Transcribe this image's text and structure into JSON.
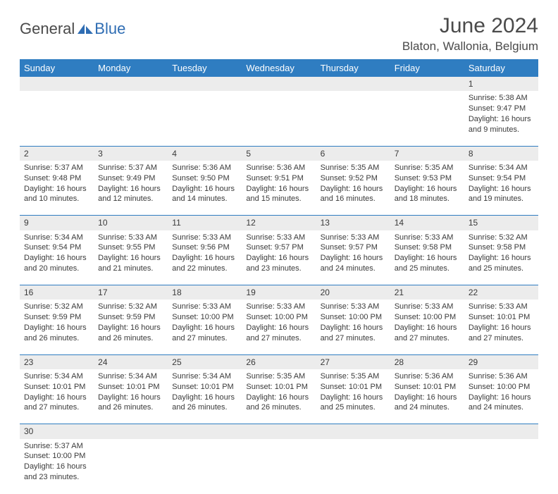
{
  "brand": {
    "part1": "General",
    "part2": "Blue"
  },
  "title": "June 2024",
  "location": "Blaton, Wallonia, Belgium",
  "colors": {
    "header_bg": "#2f7dc1",
    "header_fg": "#ffffff",
    "daynum_bg": "#ececec",
    "border": "#2f7dc1",
    "text": "#3a3a3a",
    "brand_blue": "#2f6db3",
    "brand_gray": "#4a4a4a"
  },
  "weekdays": [
    "Sunday",
    "Monday",
    "Tuesday",
    "Wednesday",
    "Thursday",
    "Friday",
    "Saturday"
  ],
  "weeks": [
    {
      "nums": [
        "",
        "",
        "",
        "",
        "",
        "",
        "1"
      ],
      "cells": [
        "",
        "",
        "",
        "",
        "",
        "",
        "Sunrise: 5:38 AM\nSunset: 9:47 PM\nDaylight: 16 hours and 9 minutes."
      ]
    },
    {
      "nums": [
        "2",
        "3",
        "4",
        "5",
        "6",
        "7",
        "8"
      ],
      "cells": [
        "Sunrise: 5:37 AM\nSunset: 9:48 PM\nDaylight: 16 hours and 10 minutes.",
        "Sunrise: 5:37 AM\nSunset: 9:49 PM\nDaylight: 16 hours and 12 minutes.",
        "Sunrise: 5:36 AM\nSunset: 9:50 PM\nDaylight: 16 hours and 14 minutes.",
        "Sunrise: 5:36 AM\nSunset: 9:51 PM\nDaylight: 16 hours and 15 minutes.",
        "Sunrise: 5:35 AM\nSunset: 9:52 PM\nDaylight: 16 hours and 16 minutes.",
        "Sunrise: 5:35 AM\nSunset: 9:53 PM\nDaylight: 16 hours and 18 minutes.",
        "Sunrise: 5:34 AM\nSunset: 9:54 PM\nDaylight: 16 hours and 19 minutes."
      ]
    },
    {
      "nums": [
        "9",
        "10",
        "11",
        "12",
        "13",
        "14",
        "15"
      ],
      "cells": [
        "Sunrise: 5:34 AM\nSunset: 9:54 PM\nDaylight: 16 hours and 20 minutes.",
        "Sunrise: 5:33 AM\nSunset: 9:55 PM\nDaylight: 16 hours and 21 minutes.",
        "Sunrise: 5:33 AM\nSunset: 9:56 PM\nDaylight: 16 hours and 22 minutes.",
        "Sunrise: 5:33 AM\nSunset: 9:57 PM\nDaylight: 16 hours and 23 minutes.",
        "Sunrise: 5:33 AM\nSunset: 9:57 PM\nDaylight: 16 hours and 24 minutes.",
        "Sunrise: 5:33 AM\nSunset: 9:58 PM\nDaylight: 16 hours and 25 minutes.",
        "Sunrise: 5:32 AM\nSunset: 9:58 PM\nDaylight: 16 hours and 25 minutes."
      ]
    },
    {
      "nums": [
        "16",
        "17",
        "18",
        "19",
        "20",
        "21",
        "22"
      ],
      "cells": [
        "Sunrise: 5:32 AM\nSunset: 9:59 PM\nDaylight: 16 hours and 26 minutes.",
        "Sunrise: 5:32 AM\nSunset: 9:59 PM\nDaylight: 16 hours and 26 minutes.",
        "Sunrise: 5:33 AM\nSunset: 10:00 PM\nDaylight: 16 hours and 27 minutes.",
        "Sunrise: 5:33 AM\nSunset: 10:00 PM\nDaylight: 16 hours and 27 minutes.",
        "Sunrise: 5:33 AM\nSunset: 10:00 PM\nDaylight: 16 hours and 27 minutes.",
        "Sunrise: 5:33 AM\nSunset: 10:00 PM\nDaylight: 16 hours and 27 minutes.",
        "Sunrise: 5:33 AM\nSunset: 10:01 PM\nDaylight: 16 hours and 27 minutes."
      ]
    },
    {
      "nums": [
        "23",
        "24",
        "25",
        "26",
        "27",
        "28",
        "29"
      ],
      "cells": [
        "Sunrise: 5:34 AM\nSunset: 10:01 PM\nDaylight: 16 hours and 27 minutes.",
        "Sunrise: 5:34 AM\nSunset: 10:01 PM\nDaylight: 16 hours and 26 minutes.",
        "Sunrise: 5:34 AM\nSunset: 10:01 PM\nDaylight: 16 hours and 26 minutes.",
        "Sunrise: 5:35 AM\nSunset: 10:01 PM\nDaylight: 16 hours and 26 minutes.",
        "Sunrise: 5:35 AM\nSunset: 10:01 PM\nDaylight: 16 hours and 25 minutes.",
        "Sunrise: 5:36 AM\nSunset: 10:01 PM\nDaylight: 16 hours and 24 minutes.",
        "Sunrise: 5:36 AM\nSunset: 10:00 PM\nDaylight: 16 hours and 24 minutes."
      ]
    },
    {
      "nums": [
        "30",
        "",
        "",
        "",
        "",
        "",
        ""
      ],
      "cells": [
        "Sunrise: 5:37 AM\nSunset: 10:00 PM\nDaylight: 16 hours and 23 minutes.",
        "",
        "",
        "",
        "",
        "",
        ""
      ]
    }
  ]
}
